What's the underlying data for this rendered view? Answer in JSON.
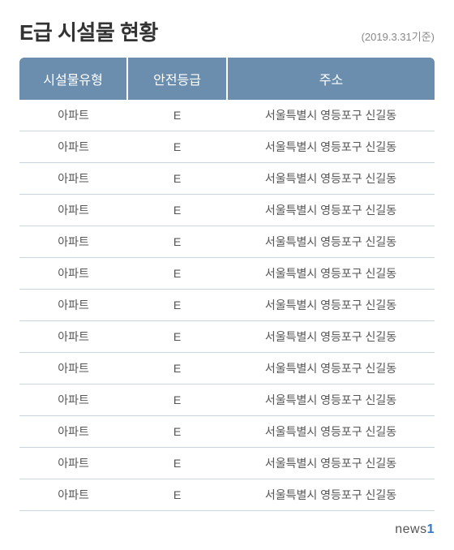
{
  "title": "E급 시설물 현황",
  "date_label": "(2019.3.31기준)",
  "table": {
    "columns": [
      "시설물유형",
      "안전등급",
      "주소"
    ],
    "column_widths": [
      "26%",
      "24%",
      "50%"
    ],
    "header_bg": "#6b8eae",
    "header_text_color": "#ffffff",
    "row_border_color": "#c8d4de",
    "cell_text_color": "#555555",
    "header_fontsize": 16,
    "cell_fontsize": 14,
    "rows": [
      [
        "아파트",
        "E",
        "서울특별시 영등포구 신길동"
      ],
      [
        "아파트",
        "E",
        "서울특별시 영등포구 신길동"
      ],
      [
        "아파트",
        "E",
        "서울특별시 영등포구 신길동"
      ],
      [
        "아파트",
        "E",
        "서울특별시 영등포구 신길동"
      ],
      [
        "아파트",
        "E",
        "서울특별시 영등포구 신길동"
      ],
      [
        "아파트",
        "E",
        "서울특별시 영등포구 신길동"
      ],
      [
        "아파트",
        "E",
        "서울특별시 영등포구 신길동"
      ],
      [
        "아파트",
        "E",
        "서울특별시 영등포구 신길동"
      ],
      [
        "아파트",
        "E",
        "서울특별시 영등포구 신길동"
      ],
      [
        "아파트",
        "E",
        "서울특별시 영등포구 신길동"
      ],
      [
        "아파트",
        "E",
        "서울특별시 영등포구 신길동"
      ],
      [
        "아파트",
        "E",
        "서울특별시 영등포구 신길동"
      ],
      [
        "아파트",
        "E",
        "서울특별시 영등포구 신길동"
      ]
    ]
  },
  "footer": {
    "brand_text": "news",
    "brand_suffix": "1",
    "brand_color": "#3876c4"
  },
  "title_color": "#333333",
  "title_fontsize": 26,
  "date_color": "#888888",
  "date_fontsize": 13,
  "background_color": "#ffffff"
}
